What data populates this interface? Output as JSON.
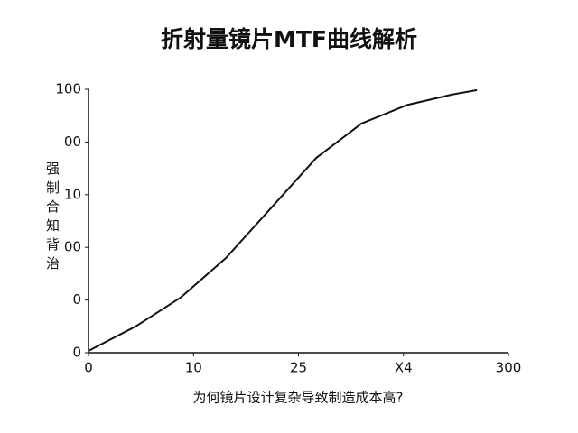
{
  "chart_data": {
    "type": "line",
    "title": "折射量镜片MTF曲线解析",
    "x_label": "为何镜片设计复杂导致制造成本高?",
    "y_label": "强制合知背治",
    "xlim": [
      0,
      40
    ],
    "ylim": [
      0,
      100
    ],
    "xticks": [
      0,
      10,
      {
        "value": 20,
        "label": "25"
      },
      {
        "value": 30,
        "label": "X4"
      },
      {
        "value": 40,
        "label": "300"
      }
    ],
    "yticks": [
      0,
      {
        "value": 20,
        "label": "0"
      },
      {
        "value": 40,
        "label": "00"
      },
      {
        "value": 60,
        "label": "10"
      },
      {
        "value": 80,
        "label": "00"
      },
      100
    ],
    "grid": false,
    "series": [
      {
        "color": "#111111",
        "x": [
          0,
          4.5,
          8.8,
          13.1,
          17.4,
          21.7,
          26.0,
          30.3,
          34.6,
          37.0
        ],
        "values": [
          0.7,
          10,
          21,
          36,
          55,
          74,
          87,
          94,
          98,
          99.7
        ]
      }
    ]
  }
}
